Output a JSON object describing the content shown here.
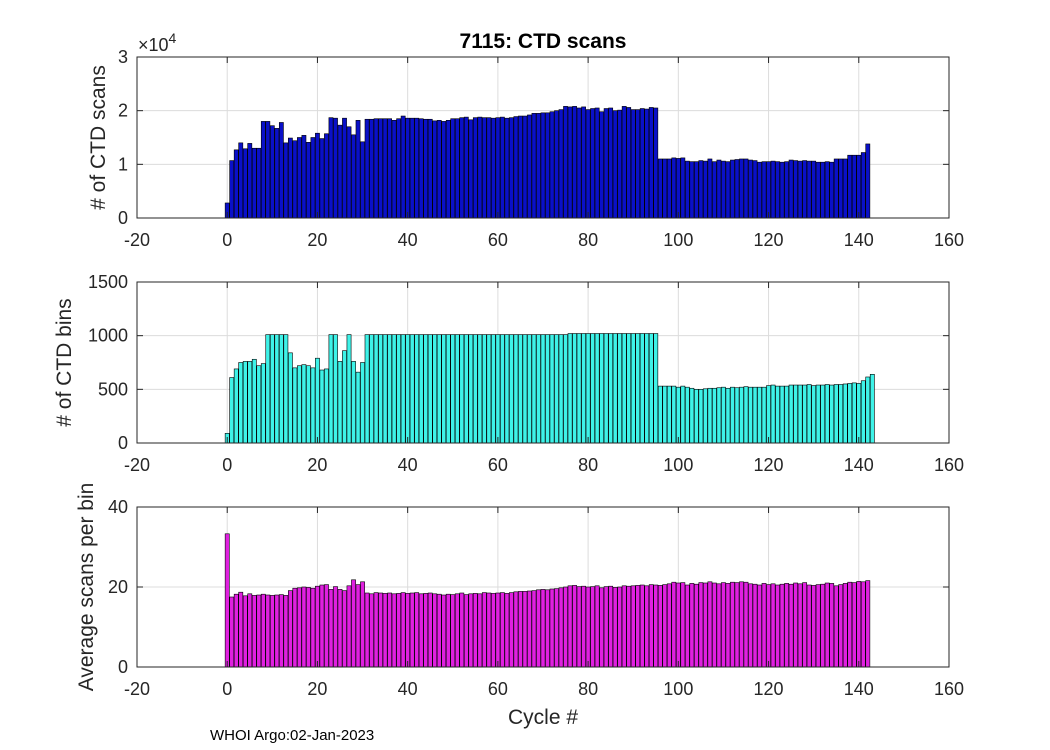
{
  "footer": "WHOI Argo:02-Jan-2023",
  "chart_data": [
    {
      "type": "bar",
      "title": "7115: CTD scans",
      "ylabel": "# of CTD scans",
      "xlabel": "",
      "y_exponent_label": "×10",
      "y_exponent": "4",
      "xlim": [
        -20,
        160
      ],
      "ylim": [
        0,
        3
      ],
      "xticks": [
        -20,
        0,
        20,
        40,
        60,
        80,
        100,
        120,
        140,
        160
      ],
      "yticks": [
        0,
        1,
        2,
        3
      ],
      "grid": true,
      "color": "#0a10c8",
      "x_start": 0,
      "values": [
        0.28,
        1.07,
        1.27,
        1.4,
        1.29,
        1.39,
        1.3,
        1.3,
        1.8,
        1.8,
        1.72,
        1.67,
        1.78,
        1.4,
        1.49,
        1.44,
        1.5,
        1.54,
        1.41,
        1.5,
        1.58,
        1.48,
        1.57,
        1.87,
        1.86,
        1.73,
        1.86,
        1.7,
        1.55,
        1.82,
        1.42,
        1.84,
        1.84,
        1.85,
        1.85,
        1.85,
        1.85,
        1.82,
        1.85,
        1.9,
        1.86,
        1.86,
        1.86,
        1.85,
        1.84,
        1.84,
        1.81,
        1.82,
        1.8,
        1.82,
        1.85,
        1.85,
        1.87,
        1.88,
        1.83,
        1.87,
        1.88,
        1.87,
        1.87,
        1.86,
        1.87,
        1.88,
        1.86,
        1.87,
        1.89,
        1.9,
        1.9,
        1.92,
        1.95,
        1.95,
        1.96,
        1.96,
        1.98,
        2.0,
        2.02,
        2.08,
        2.07,
        2.08,
        2.05,
        2.07,
        2.02,
        2.04,
        2.05,
        1.98,
        2.04,
        2.05,
        2.0,
        2.01,
        2.08,
        2.06,
        2.02,
        2.02,
        2.04,
        2.03,
        2.06,
        2.05,
        1.1,
        1.1,
        1.1,
        1.12,
        1.11,
        1.12,
        1.06,
        1.05,
        1.05,
        1.07,
        1.06,
        1.1,
        1.05,
        1.08,
        1.06,
        1.05,
        1.08,
        1.09,
        1.1,
        1.1,
        1.08,
        1.07,
        1.04,
        1.05,
        1.05,
        1.06,
        1.05,
        1.04,
        1.05,
        1.08,
        1.07,
        1.06,
        1.07,
        1.06,
        1.06,
        1.04,
        1.04,
        1.05,
        1.04,
        1.1,
        1.1,
        1.1,
        1.17,
        1.17,
        1.17,
        1.22,
        1.38
      ]
    },
    {
      "type": "bar",
      "title": "",
      "ylabel": "# of CTD bins",
      "xlabel": "",
      "xlim": [
        -20,
        160
      ],
      "ylim": [
        0,
        1500
      ],
      "xticks": [
        -20,
        0,
        20,
        40,
        60,
        80,
        100,
        120,
        140,
        160
      ],
      "yticks": [
        0,
        500,
        1000,
        1500
      ],
      "grid": true,
      "color": "#3ef2e8",
      "x_start": 0,
      "values": [
        90,
        610,
        690,
        750,
        760,
        760,
        780,
        720,
        740,
        1010,
        1010,
        1010,
        1010,
        1010,
        840,
        700,
        720,
        730,
        720,
        700,
        790,
        680,
        690,
        1010,
        1010,
        760,
        860,
        1010,
        760,
        660,
        750,
        1010,
        1010,
        1010,
        1010,
        1010,
        1010,
        1010,
        1010,
        1010,
        1010,
        1010,
        1010,
        1010,
        1010,
        1010,
        1010,
        1010,
        1010,
        1010,
        1010,
        1010,
        1010,
        1010,
        1010,
        1010,
        1010,
        1010,
        1010,
        1010,
        1010,
        1010,
        1010,
        1010,
        1010,
        1010,
        1010,
        1010,
        1010,
        1010,
        1010,
        1010,
        1010,
        1010,
        1010,
        1010,
        1020,
        1020,
        1020,
        1020,
        1020,
        1020,
        1020,
        1020,
        1020,
        1020,
        1020,
        1020,
        1020,
        1020,
        1020,
        1020,
        1020,
        1020,
        1020,
        1020,
        530,
        530,
        530,
        530,
        520,
        530,
        520,
        510,
        500,
        500,
        505,
        510,
        510,
        515,
        520,
        510,
        520,
        515,
        520,
        525,
        520,
        520,
        520,
        520,
        535,
        540,
        530,
        530,
        530,
        540,
        540,
        540,
        540,
        545,
        535,
        540,
        540,
        545,
        540,
        545,
        545,
        550,
        555,
        560,
        555,
        580,
        615,
        640
      ]
    },
    {
      "type": "bar",
      "title": "",
      "ylabel": "Average scans per bin",
      "xlabel": "Cycle #",
      "xlim": [
        -20,
        160
      ],
      "ylim": [
        0,
        40
      ],
      "xticks": [
        -20,
        0,
        20,
        40,
        60,
        80,
        100,
        120,
        140,
        160
      ],
      "yticks": [
        0,
        20,
        40
      ],
      "grid": true,
      "color": "#e020e0",
      "x_start": 0,
      "values": [
        33.3,
        17.5,
        18.2,
        18.7,
        17.8,
        18.3,
        17.9,
        18.0,
        18.2,
        18.0,
        17.9,
        18.0,
        18.1,
        17.9,
        19.1,
        19.7,
        19.8,
        20.0,
        19.9,
        19.7,
        20.2,
        20.5,
        20.6,
        19.4,
        20.1,
        19.4,
        19.1,
        20.3,
        21.8,
        20.6,
        21.3,
        18.5,
        18.3,
        18.6,
        18.5,
        18.4,
        18.5,
        18.3,
        18.4,
        18.6,
        18.4,
        18.5,
        18.6,
        18.3,
        18.4,
        18.5,
        18.3,
        18.2,
        18.0,
        18.2,
        18.1,
        18.3,
        18.5,
        18.1,
        18.3,
        18.4,
        18.3,
        18.6,
        18.5,
        18.4,
        18.5,
        18.6,
        18.4,
        18.6,
        18.8,
        18.9,
        18.9,
        19.0,
        19.1,
        19.3,
        19.4,
        19.3,
        19.5,
        19.6,
        19.8,
        20.0,
        20.3,
        20.4,
        20.1,
        20.2,
        20.0,
        20.1,
        20.3,
        19.8,
        20.1,
        20.2,
        19.9,
        20.0,
        20.3,
        20.2,
        20.3,
        20.4,
        20.5,
        20.3,
        20.6,
        20.5,
        20.4,
        20.6,
        20.8,
        21.2,
        21.0,
        21.1,
        20.5,
        20.9,
        20.7,
        21.1,
        21.0,
        21.3,
        21.0,
        20.8,
        21.1,
        20.9,
        21.2,
        21.1,
        21.3,
        21.2,
        20.8,
        20.7,
        20.5,
        20.9,
        20.6,
        20.8,
        20.5,
        20.7,
        20.9,
        20.7,
        21.0,
        20.8,
        21.1,
        20.5,
        20.4,
        20.6,
        20.7,
        21.0,
        20.9,
        20.3,
        20.6,
        20.9,
        21.2,
        21.1,
        21.4,
        21.3,
        21.6
      ]
    }
  ]
}
